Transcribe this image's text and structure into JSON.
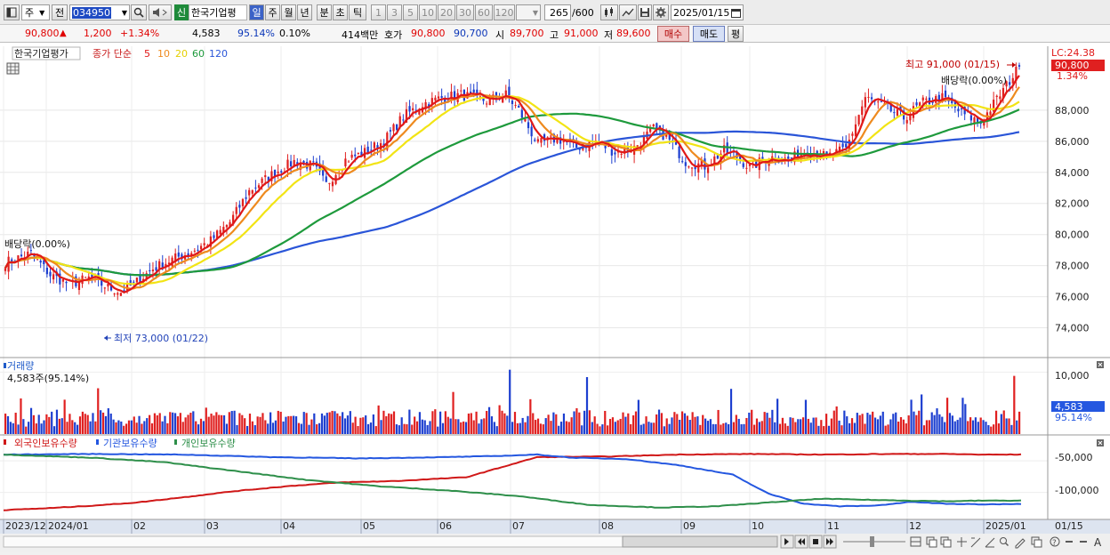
{
  "toolbar": {
    "period_select": "주",
    "prev_label": "전",
    "code": "034950",
    "badge": "신",
    "name": "한국기업평",
    "tabs": [
      "일",
      "주",
      "월",
      "년",
      "분",
      "초",
      "틱"
    ],
    "active_tab": "일",
    "periods": [
      "1",
      "3",
      "5",
      "10",
      "20",
      "30",
      "60",
      "120"
    ],
    "count": "265",
    "count_total": "/600",
    "date": "2025/01/15"
  },
  "quote": {
    "price": "90,800",
    "change": "1,200",
    "change_pct": "+1.34%",
    "volume": "4,583",
    "volume_pct": "95.14%",
    "turnover_pct": "0.10%",
    "amount": "414백만",
    "hoga_label": "호가",
    "ask": "90,800",
    "bid": "90,700",
    "open_label": "시",
    "open": "89,700",
    "high_label": "고",
    "high": "91,000",
    "low_label": "저",
    "low": "89,600",
    "buy_label": "매수",
    "sell_label": "매도",
    "eval_label": "평"
  },
  "colors": {
    "up": "#e02020",
    "down": "#1d3fd0",
    "ma5": "#e01818",
    "ma10": "#ee8a1e",
    "ma20": "#f2e414",
    "ma60": "#1e9a3c",
    "ma120": "#2a55d8"
  },
  "chart_data": [
    {
      "type": "candlestick",
      "legend": {
        "name": "한국기업평가",
        "price_label": "종가 단순",
        "ma": [
          "5",
          "10",
          "20",
          "60",
          "120"
        ]
      },
      "y_ticks": [
        "74,000",
        "76,000",
        "78,000",
        "80,000",
        "82,000",
        "84,000",
        "86,000",
        "88,000"
      ],
      "y_range": [
        72200,
        92000
      ],
      "x_ticks": [
        "2023/12",
        "2024/01",
        "02",
        "03",
        "04",
        "05",
        "06",
        "07",
        "08",
        "09",
        "10",
        "11",
        "12",
        "2025/01"
      ],
      "x_end_label": "01/15",
      "lc_label": "LC:24.38",
      "last_price": "90,800",
      "last_change": "1.34%",
      "annotations": {
        "high": "최고 91,000 (01/15)",
        "low": "최저 73,000 (01/22)",
        "dividend_left": "배당락(0.00%)",
        "dividend_right": "배당락(0.00%)"
      },
      "close_anchors": [
        [
          0,
          78200
        ],
        [
          8,
          78800
        ],
        [
          14,
          77400
        ],
        [
          20,
          76800
        ],
        [
          26,
          77200
        ],
        [
          32,
          76600
        ],
        [
          36,
          76300
        ],
        [
          40,
          76800
        ],
        [
          46,
          77800
        ],
        [
          52,
          78400
        ],
        [
          58,
          78900
        ],
        [
          64,
          79600
        ],
        [
          70,
          80800
        ],
        [
          76,
          82800
        ],
        [
          84,
          84000
        ],
        [
          90,
          84700
        ],
        [
          96,
          84400
        ],
        [
          100,
          83200
        ],
        [
          106,
          84800
        ],
        [
          112,
          85300
        ],
        [
          118,
          86000
        ],
        [
          124,
          87600
        ],
        [
          130,
          88400
        ],
        [
          136,
          88800
        ],
        [
          142,
          89000
        ],
        [
          150,
          88600
        ],
        [
          156,
          89000
        ],
        [
          160,
          88000
        ],
        [
          166,
          85800
        ],
        [
          172,
          86200
        ],
        [
          178,
          85600
        ],
        [
          184,
          86000
        ],
        [
          190,
          85300
        ],
        [
          196,
          85600
        ],
        [
          202,
          86800
        ],
        [
          206,
          86300
        ],
        [
          212,
          84700
        ],
        [
          218,
          84400
        ],
        [
          224,
          85400
        ],
        [
          228,
          85000
        ],
        [
          232,
          84300
        ],
        [
          238,
          85000
        ],
        [
          244,
          84800
        ],
        [
          250,
          85400
        ],
        [
          256,
          85000
        ],
        [
          262,
          85500
        ],
        [
          268,
          88800
        ],
        [
          274,
          88200
        ],
        [
          280,
          87500
        ],
        [
          286,
          88500
        ],
        [
          292,
          88800
        ],
        [
          298,
          87800
        ],
        [
          304,
          87200
        ],
        [
          310,
          89000
        ],
        [
          316,
          90800
        ]
      ]
    },
    {
      "type": "bar",
      "title": "거래량",
      "legend_value": "4,583주(95.14%)",
      "y_ticks": [
        "10,000"
      ],
      "y_range": [
        0,
        11500
      ],
      "last_value_label": "4,583",
      "last_pct_label": "95.14%",
      "spikes": [
        [
          36,
          7400
        ],
        [
          174,
          6800
        ],
        [
          196,
          10400
        ],
        [
          226,
          9200
        ],
        [
          282,
          7300
        ],
        [
          300,
          5700
        ],
        [
          356,
          6400
        ],
        [
          392,
          9400
        ]
      ]
    },
    {
      "type": "line",
      "series_names": [
        "외국인보유수량",
        "기관보유수량",
        "개인보유수량"
      ],
      "series_colors": [
        "#d01818",
        "#2457e0",
        "#2e8f4a"
      ],
      "y_ticks": [
        "-50,000",
        "-100,000"
      ],
      "y_range": [
        -140000,
        -30000
      ],
      "series": [
        {
          "name": "외국인보유수량",
          "anchors": [
            [
              0,
              -128000
            ],
            [
              50,
              -125000
            ],
            [
              100,
              -121000
            ],
            [
              150,
              -116000
            ],
            [
              200,
              -108000
            ],
            [
              260,
              -98000
            ],
            [
              320,
              -90000
            ],
            [
              380,
              -84000
            ],
            [
              440,
              -82000
            ],
            [
              520,
              -76000
            ],
            [
              600,
              -44000
            ],
            [
              680,
              -43000
            ],
            [
              760,
              -40000
            ],
            [
              840,
              -39000
            ],
            [
              920,
              -40000
            ],
            [
              1000,
              -39000
            ],
            [
              1060,
              -39000
            ],
            [
              1100,
              -40000
            ],
            [
              1145,
              -40000
            ]
          ]
        },
        {
          "name": "기관보유수량",
          "anchors": [
            [
              0,
              -40000
            ],
            [
              100,
              -39000
            ],
            [
              200,
              -40000
            ],
            [
              300,
              -44000
            ],
            [
              400,
              -46000
            ],
            [
              500,
              -44000
            ],
            [
              560,
              -42000
            ],
            [
              600,
              -40000
            ],
            [
              640,
              -45000
            ],
            [
              700,
              -47000
            ],
            [
              760,
              -57000
            ],
            [
              820,
              -72000
            ],
            [
              860,
              -102000
            ],
            [
              900,
              -118000
            ],
            [
              940,
              -122000
            ],
            [
              980,
              -121000
            ],
            [
              1020,
              -115000
            ],
            [
              1060,
              -118000
            ],
            [
              1100,
              -119000
            ],
            [
              1145,
              -118000
            ]
          ]
        },
        {
          "name": "개인보유수량",
          "anchors": [
            [
              0,
              -40000
            ],
            [
              100,
              -45000
            ],
            [
              180,
              -52000
            ],
            [
              260,
              -66000
            ],
            [
              340,
              -80000
            ],
            [
              420,
              -90000
            ],
            [
              500,
              -97000
            ],
            [
              580,
              -106000
            ],
            [
              660,
              -120000
            ],
            [
              740,
              -124000
            ],
            [
              800,
              -122000
            ],
            [
              860,
              -116000
            ],
            [
              920,
              -110000
            ],
            [
              980,
              -112000
            ],
            [
              1060,
              -114000
            ],
            [
              1100,
              -113000
            ],
            [
              1145,
              -113000
            ]
          ]
        }
      ]
    }
  ]
}
